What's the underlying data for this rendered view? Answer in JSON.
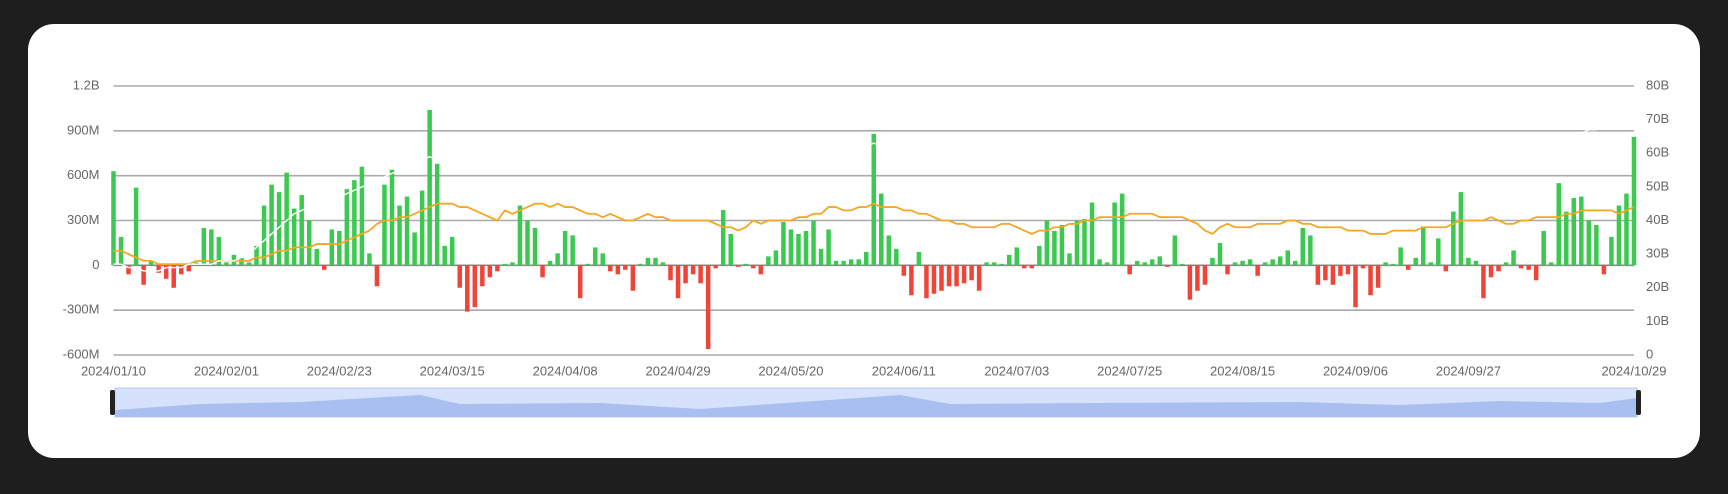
{
  "chart_data": {
    "type": "bar",
    "categories": [
      "2024/01/10",
      null,
      null,
      null,
      null,
      null,
      null,
      null,
      null,
      null,
      null,
      null,
      null,
      null,
      null,
      "2024/02/01",
      null,
      null,
      null,
      null,
      null,
      null,
      null,
      null,
      null,
      null,
      null,
      null,
      null,
      null,
      "2024/02/23",
      null,
      null,
      null,
      null,
      null,
      null,
      null,
      null,
      null,
      null,
      null,
      null,
      null,
      null,
      "2024/03/15",
      null,
      null,
      null,
      null,
      null,
      null,
      null,
      null,
      null,
      null,
      null,
      null,
      null,
      null,
      "2024/04/08",
      null,
      null,
      null,
      null,
      null,
      null,
      null,
      null,
      null,
      null,
      null,
      null,
      null,
      null,
      "2024/04/29",
      null,
      null,
      null,
      null,
      null,
      null,
      null,
      null,
      null,
      null,
      null,
      null,
      null,
      null,
      "2024/05/20",
      null,
      null,
      null,
      null,
      null,
      null,
      null,
      null,
      null,
      null,
      null,
      null,
      null,
      null,
      "2024/06/11",
      null,
      null,
      null,
      null,
      null,
      null,
      null,
      null,
      null,
      null,
      null,
      null,
      null,
      null,
      "2024/07/03",
      null,
      null,
      null,
      null,
      null,
      null,
      null,
      null,
      null,
      null,
      null,
      null,
      null,
      null,
      "2024/07/25",
      null,
      null,
      null,
      null,
      null,
      null,
      null,
      null,
      null,
      null,
      null,
      null,
      null,
      null,
      "2024/08/15",
      null,
      null,
      null,
      null,
      null,
      null,
      null,
      null,
      null,
      null,
      null,
      null,
      null,
      null,
      "2024/09/06",
      null,
      null,
      null,
      null,
      null,
      null,
      null,
      null,
      null,
      null,
      null,
      null,
      null,
      null,
      "2024/09/27",
      null,
      null,
      null,
      null,
      null,
      null,
      null,
      null,
      null,
      null,
      null,
      null,
      null,
      null,
      null,
      null,
      null,
      null,
      null,
      null,
      null,
      "2024/10/29"
    ],
    "series": [
      {
        "type": "bar",
        "colors": {
          "positive": "#3cc94f",
          "negative": "#f04438"
        },
        "values": [
          630,
          190,
          -60,
          520,
          -130,
          30,
          -50,
          -90,
          -150,
          -60,
          -40,
          20,
          250,
          240,
          190,
          20,
          70,
          50,
          20,
          130,
          400,
          540,
          490,
          620,
          380,
          470,
          300,
          110,
          -30,
          240,
          230,
          510,
          570,
          660,
          80,
          -140,
          540,
          640,
          400,
          460,
          220,
          500,
          1040,
          680,
          130,
          190,
          -150,
          -310,
          -280,
          -140,
          -80,
          -40,
          10,
          20,
          400,
          300,
          250,
          -80,
          30,
          80,
          230,
          200,
          -220,
          10,
          120,
          80,
          -40,
          -60,
          -30,
          -170,
          10,
          50,
          50,
          20,
          -100,
          -220,
          -120,
          -60,
          -120,
          -560,
          -20,
          370,
          210,
          -10,
          10,
          -20,
          -60,
          60,
          100,
          290,
          240,
          210,
          230,
          300,
          110,
          240,
          30,
          30,
          40,
          40,
          90,
          880,
          480,
          200,
          110,
          -70,
          -200,
          90,
          -220,
          -190,
          -170,
          -140,
          -140,
          -120,
          -100,
          -170,
          20,
          20,
          10,
          70,
          120,
          -20,
          -20,
          130,
          300,
          230,
          270,
          80,
          300,
          310,
          420,
          40,
          20,
          420,
          480,
          -60,
          30,
          20,
          40,
          60,
          -10,
          200,
          10,
          -230,
          -170,
          -130,
          50,
          150,
          -60,
          20,
          30,
          40,
          -70,
          20,
          40,
          60,
          100,
          30,
          250,
          200,
          -130,
          -100,
          -130,
          -70,
          -60,
          -280,
          -20,
          -200,
          -150,
          20,
          10,
          120,
          -30,
          50,
          260,
          20,
          180,
          -40,
          360,
          490,
          50,
          30,
          -220,
          -80,
          -40,
          20,
          100,
          -20,
          -30,
          -100,
          230,
          20,
          550,
          360,
          450,
          460,
          300,
          270,
          -60,
          190,
          400,
          480,
          860
        ]
      },
      {
        "type": "line",
        "axis": "y2",
        "color": "#f5a623",
        "values": [
          31,
          31,
          30,
          29,
          28,
          28,
          27,
          27,
          27,
          27,
          27,
          28,
          28,
          28,
          28,
          28,
          28,
          28,
          28,
          29,
          29,
          30,
          31,
          31,
          32,
          32,
          32,
          33,
          33,
          33,
          33,
          34,
          35,
          36,
          37,
          39,
          40,
          40,
          41,
          41,
          42,
          43,
          44,
          45,
          45,
          45,
          44,
          44,
          43,
          42,
          41,
          40,
          43,
          42,
          43,
          44,
          45,
          45,
          44,
          45,
          44,
          44,
          43,
          42,
          42,
          41,
          42,
          41,
          40,
          40,
          41,
          42,
          41,
          41,
          40,
          40,
          40,
          40,
          40,
          40,
          39,
          38,
          38,
          37,
          38,
          40,
          39,
          40,
          40,
          40,
          40,
          41,
          41,
          42,
          42,
          44,
          44,
          43,
          43,
          44,
          44,
          45,
          44,
          44,
          44,
          43,
          43,
          42,
          42,
          41,
          40,
          40,
          39,
          39,
          38,
          38,
          38,
          38,
          39,
          39,
          38,
          37,
          36,
          37,
          37,
          38,
          38,
          39,
          39,
          40,
          40,
          41,
          41,
          41,
          41,
          42,
          42,
          42,
          42,
          41,
          41,
          41,
          41,
          40,
          39,
          37,
          36,
          38,
          39,
          38,
          38,
          38,
          39,
          39,
          39,
          39,
          40,
          40,
          39,
          39,
          38,
          38,
          38,
          38,
          37,
          37,
          37,
          36,
          36,
          36,
          37,
          37,
          37,
          37,
          38,
          38,
          38,
          38,
          39,
          40,
          40,
          40,
          40,
          41,
          40,
          39,
          39,
          40,
          40,
          41,
          41,
          41,
          41,
          42,
          42,
          43,
          43,
          43,
          43,
          43,
          42,
          43,
          44
        ]
      },
      {
        "type": "line",
        "axis": "y2",
        "color": "#ffffff",
        "values": [
          27,
          27,
          26,
          26,
          25,
          25,
          25,
          26,
          26,
          26,
          27,
          27,
          27,
          27,
          28,
          28,
          28,
          29,
          30,
          32,
          34,
          36,
          38,
          40,
          42,
          43,
          44,
          44,
          45,
          45,
          47,
          48,
          49,
          50,
          51,
          52,
          53,
          54,
          55,
          56,
          57,
          58,
          59,
          58,
          57,
          56,
          55,
          55,
          54,
          55,
          55,
          56,
          56,
          57,
          57,
          56,
          56,
          57,
          57,
          56,
          56,
          55,
          56,
          57,
          57,
          56,
          56,
          57,
          56,
          56,
          55,
          55,
          56,
          56,
          57,
          57,
          56,
          56,
          55,
          55,
          54,
          54,
          55,
          56,
          56,
          57,
          58,
          58,
          57,
          57,
          58,
          58,
          59,
          59,
          60,
          60,
          60,
          61,
          61,
          62,
          62,
          63,
          62,
          61,
          60,
          60,
          59,
          59,
          58,
          58,
          57,
          57,
          56,
          56,
          56,
          56,
          55,
          55,
          56,
          56,
          56,
          56,
          55,
          55,
          56,
          56,
          57,
          57,
          57,
          58,
          58,
          58,
          57,
          57,
          58,
          58,
          58,
          57,
          57,
          57,
          57,
          56,
          56,
          55,
          55,
          54,
          55,
          55,
          56,
          56,
          56,
          57,
          57,
          57,
          57,
          58,
          58,
          57,
          57,
          56,
          56,
          56,
          55,
          55,
          55,
          54,
          54,
          55,
          55,
          56,
          56,
          56,
          57,
          57,
          58,
          58,
          59,
          59,
          60,
          60,
          61,
          61,
          61,
          62,
          62,
          63,
          63,
          62,
          62,
          63,
          63,
          64,
          64,
          65,
          65,
          66,
          67,
          67,
          68,
          68,
          69,
          70,
          71
        ]
      }
    ],
    "ylim": [
      -600,
      1200
    ],
    "yticks": [
      {
        "value": -600,
        "label": "-600M"
      },
      {
        "value": -300,
        "label": "-300M"
      },
      0,
      {
        "value": 300,
        "label": "300M"
      },
      {
        "value": 600,
        "label": "600M"
      },
      {
        "value": 900,
        "label": "900M"
      },
      {
        "value": 1200,
        "label": "1.2B"
      }
    ],
    "y2lim": [
      0,
      80
    ],
    "y2ticks": [
      0,
      {
        "value": 10,
        "label": "10B"
      },
      {
        "value": 20,
        "label": "20B"
      },
      {
        "value": 30,
        "label": "30B"
      },
      {
        "value": 40,
        "label": "40B"
      },
      {
        "value": 50,
        "label": "50B"
      },
      {
        "value": 60,
        "label": "60B"
      },
      {
        "value": 70,
        "label": "70B"
      },
      {
        "value": 80,
        "label": "80B"
      }
    ],
    "grid": true
  }
}
